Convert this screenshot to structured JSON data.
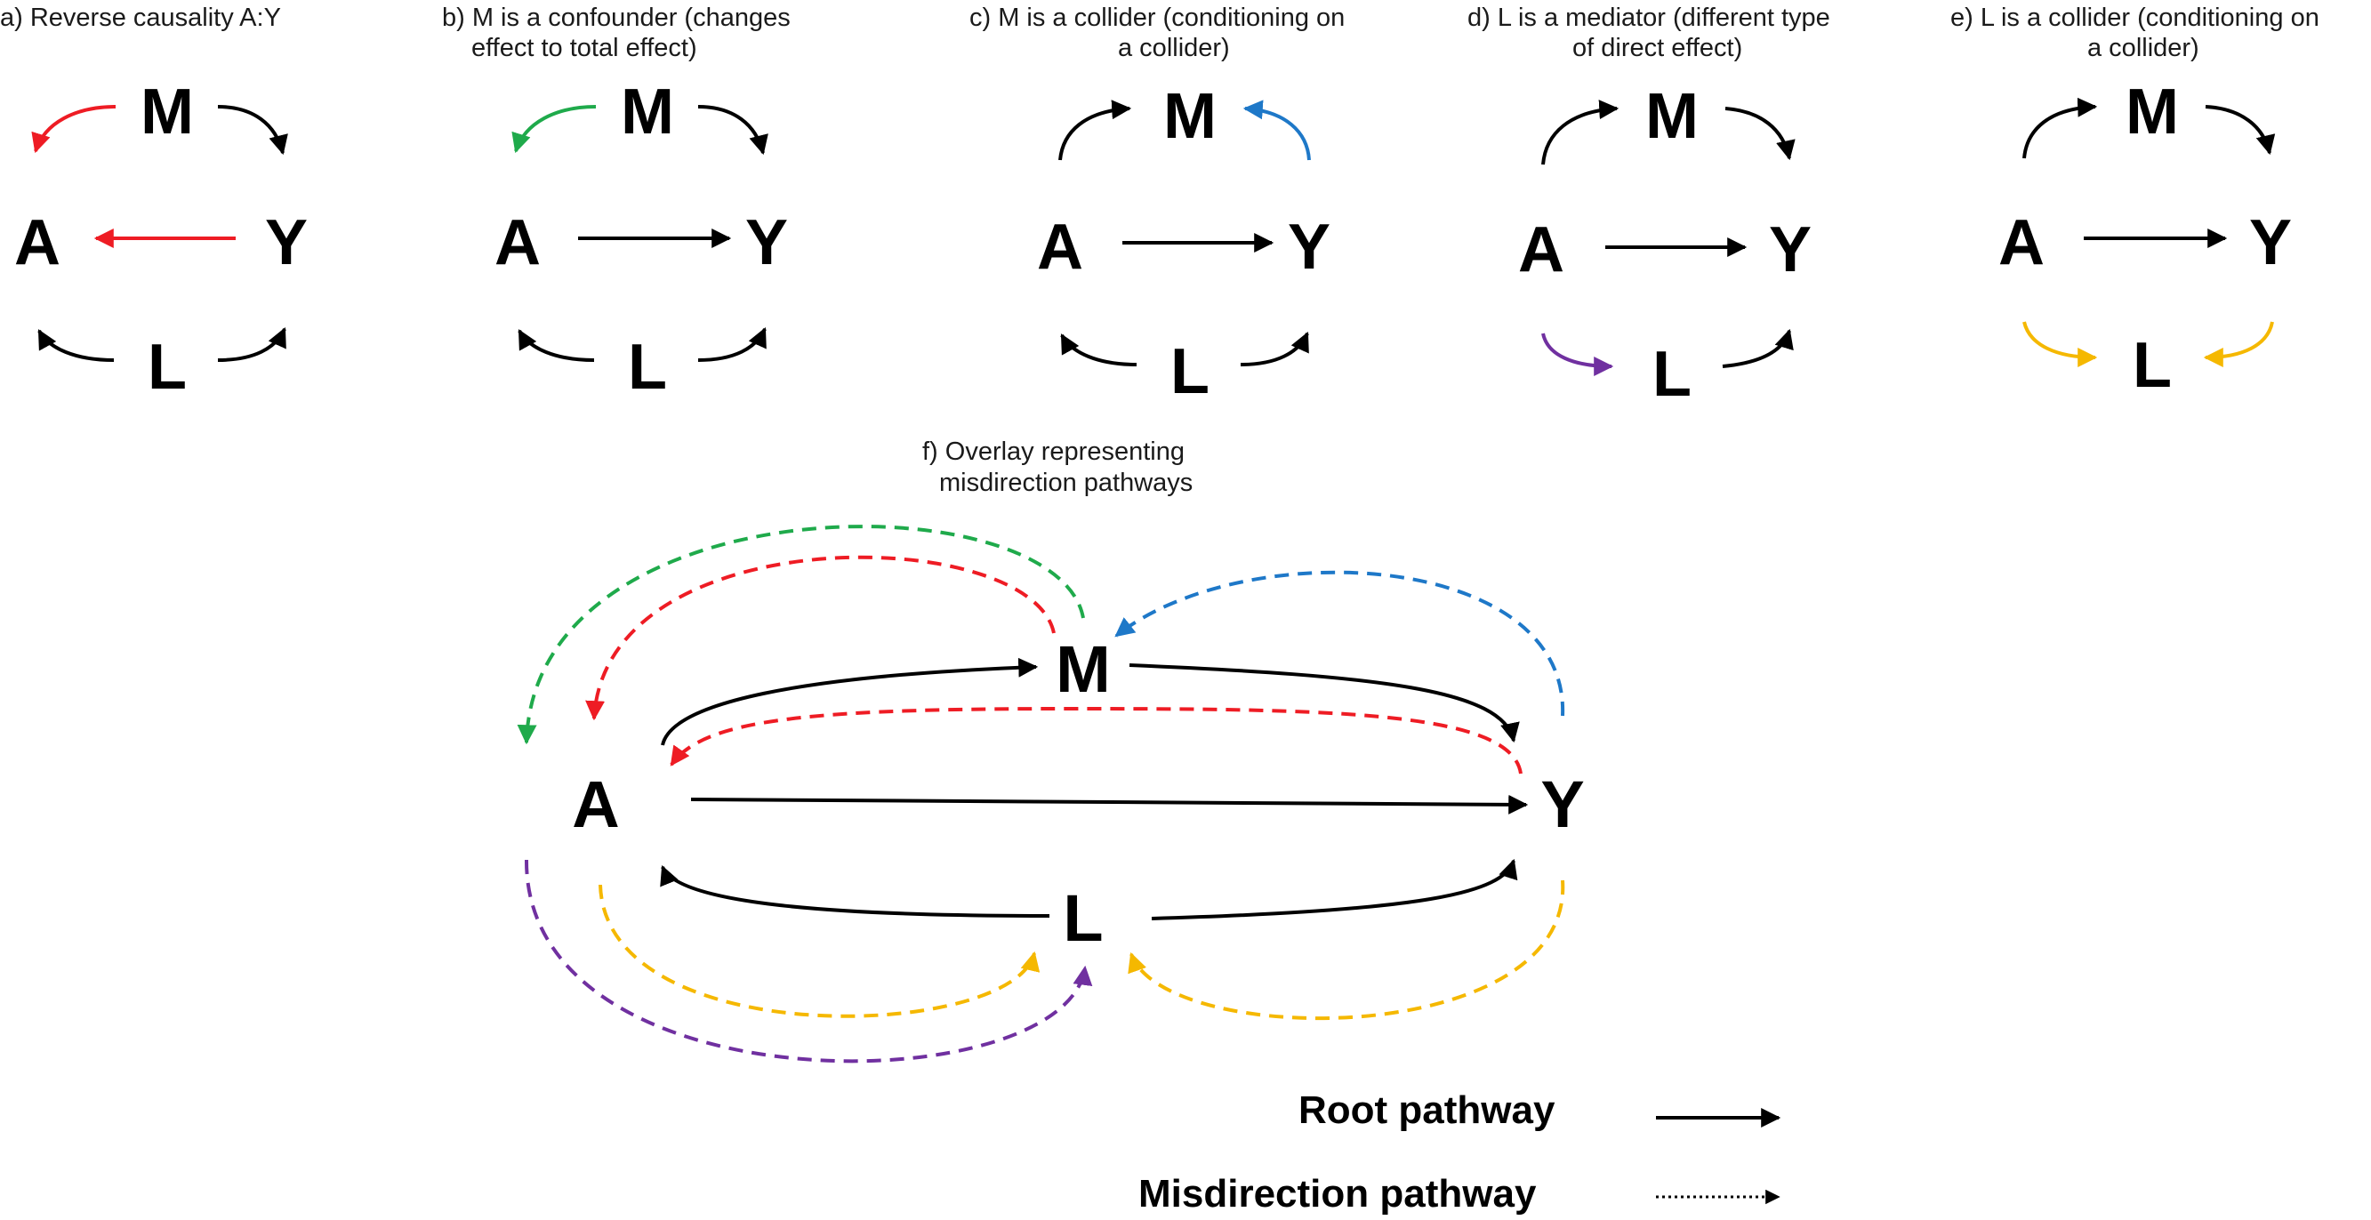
{
  "colors": {
    "root": "#000000",
    "reverse_causality": "#ee1c24",
    "confounder": "#1faa4b",
    "collider_m": "#1e78c8",
    "mediator": "#7030a0",
    "collider_l": "#f5b800"
  },
  "panels": {
    "a": {
      "title_lines": [
        "a) Reverse causality A:Y"
      ],
      "nodes": {
        "m": "M",
        "a": "A",
        "y": "Y",
        "l": "L"
      }
    },
    "b": {
      "title_lines": [
        "b) M is a confounder (changes",
        "effect to total effect)"
      ],
      "nodes": {
        "m": "M",
        "a": "A",
        "y": "Y",
        "l": "L"
      }
    },
    "c": {
      "title_lines": [
        "c) M is a collider (conditioning on",
        "a collider)"
      ],
      "nodes": {
        "m": "M",
        "a": "A",
        "y": "Y",
        "l": "L"
      }
    },
    "d": {
      "title_lines": [
        "d) L is a mediator (different type",
        "of direct effect)"
      ],
      "nodes": {
        "m": "M",
        "a": "A",
        "y": "Y",
        "l": "L"
      }
    },
    "e": {
      "title_lines": [
        "e) L is a collider (conditioning on",
        "a collider)"
      ],
      "nodes": {
        "m": "M",
        "a": "A",
        "y": "Y",
        "l": "L"
      }
    },
    "f": {
      "title_lines": [
        "f) Overlay representing",
        "misdirection pathways"
      ],
      "nodes": {
        "m": "M",
        "a": "A",
        "y": "Y",
        "l": "L"
      }
    }
  },
  "legend": {
    "root_label": "Root pathway",
    "misdirection_label": "Misdirection pathway"
  }
}
